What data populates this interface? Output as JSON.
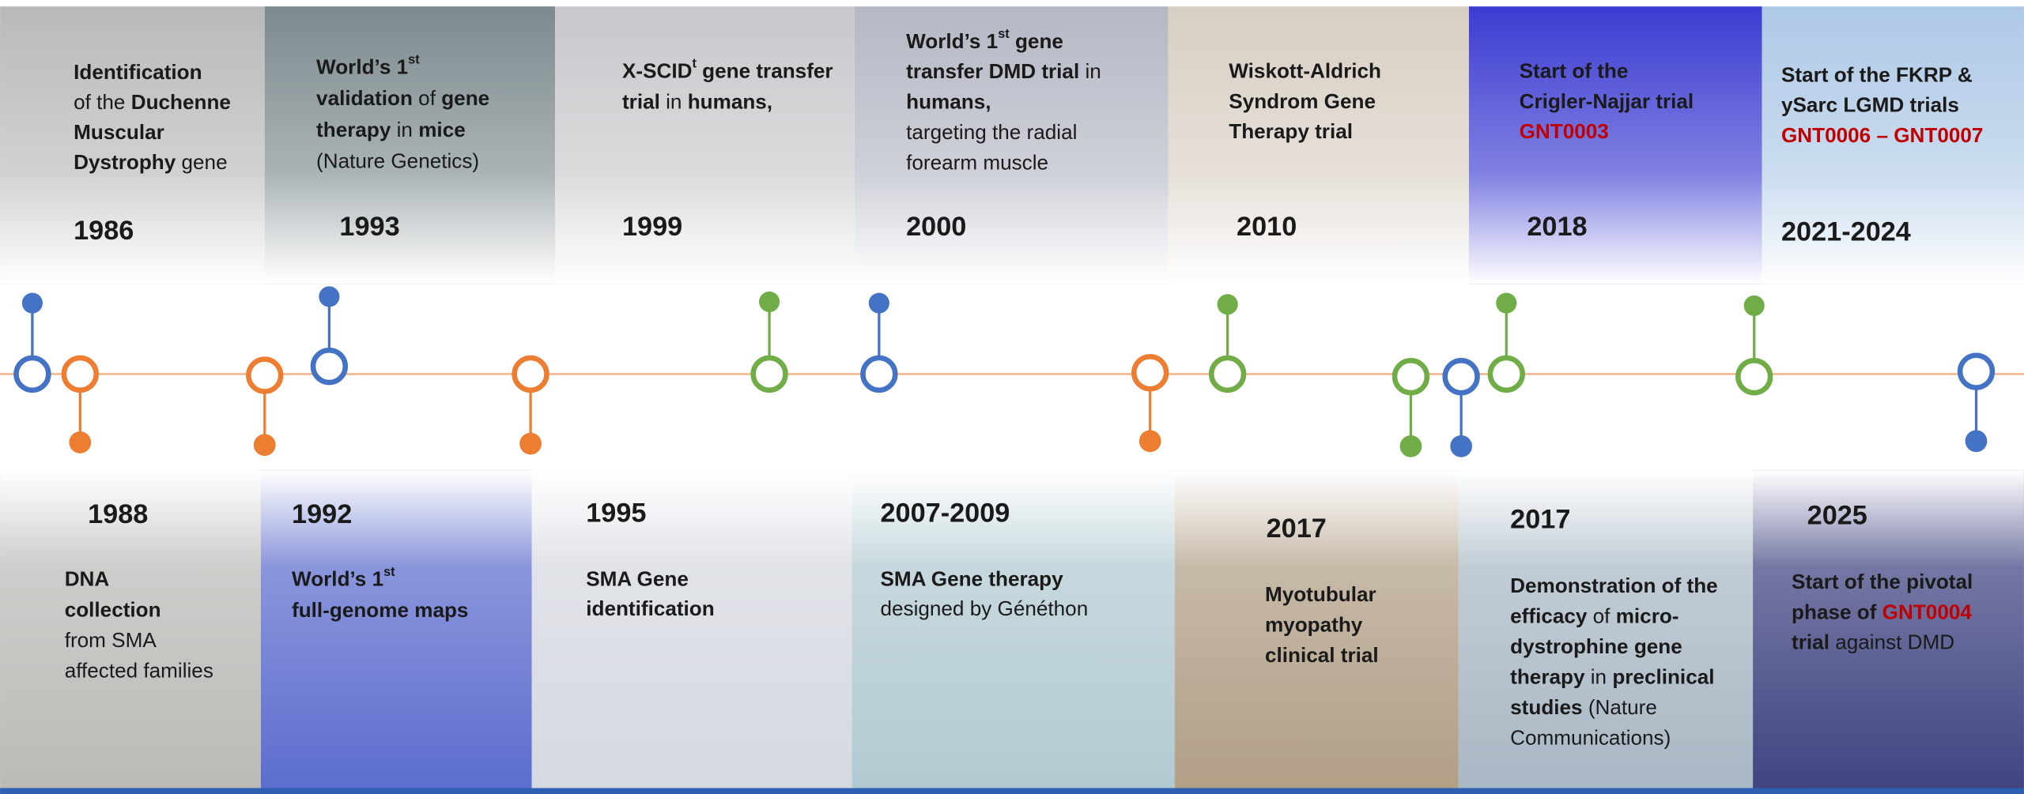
{
  "events": [
    {
      "year": "1986",
      "color": "#4472c4",
      "lines": [
        [
          {
            "text": "Identification",
            "bold": true
          }
        ],
        [
          {
            "text": "of the "
          },
          {
            "text": "Duchenne",
            "bold": true
          }
        ],
        [
          {
            "text": "Muscular",
            "bold": true
          }
        ],
        [
          {
            "text": "Dystrophy",
            "bold": true
          },
          {
            "text": " gene"
          }
        ]
      ]
    },
    {
      "year": "1993",
      "color": "#4472c4",
      "lines": [
        [
          {
            "text": "World’s 1",
            "bold": true
          },
          {
            "text": "st",
            "bold": true,
            "sup": true
          }
        ],
        [
          {
            "text": "validation",
            "bold": true
          },
          {
            "text": " of "
          },
          {
            "text": "gene",
            "bold": true
          }
        ],
        [
          {
            "text": "therapy",
            "bold": true
          },
          {
            "text": " in "
          },
          {
            "text": "mice",
            "bold": true
          }
        ],
        [
          {
            "text": "(Nature Genetics)"
          }
        ]
      ]
    },
    {
      "year": "1999",
      "color": "#70ad47",
      "lines": [
        [
          {
            "text": "X-SCID",
            "bold": true
          },
          {
            "text": "t",
            "bold": true,
            "sup": true
          },
          {
            "text": " gene transfer",
            "bold": true
          }
        ],
        [
          {
            "text": "trial",
            "bold": true
          },
          {
            "text": " in "
          },
          {
            "text": "humans,",
            "bold": true
          }
        ]
      ]
    },
    {
      "year": "2000",
      "color": "#4472c4",
      "lines": [
        [
          {
            "text": "World’s 1",
            "bold": true
          },
          {
            "text": "st",
            "bold": true,
            "sup": true
          },
          {
            "text": " gene",
            "bold": true
          }
        ],
        [
          {
            "text": "transfer DMD trial",
            "bold": true
          },
          {
            "text": " in"
          }
        ],
        [
          {
            "text": "humans,",
            "bold": true
          }
        ],
        [
          {
            "text": "targeting the radial"
          }
        ],
        [
          {
            "text": "forearm muscle"
          }
        ]
      ]
    },
    {
      "year": "2010",
      "color": "#70ad47",
      "lines": [
        [
          {
            "text": "Wiskott-Aldrich",
            "bold": true
          }
        ],
        [
          {
            "text": "Syndrom Gene",
            "bold": true
          }
        ],
        [
          {
            "text": "Therapy trial",
            "bold": true
          }
        ]
      ]
    },
    {
      "year": "2018",
      "color": "#70ad47",
      "lines": [
        [
          {
            "text": "Start of the",
            "bold": true
          }
        ],
        [
          {
            "text": "Crigler-Najjar trial",
            "bold": true
          }
        ],
        [
          {
            "text": "GNT0003",
            "bold": true,
            "color": "#c00000"
          }
        ]
      ]
    },
    {
      "year": "2021-2024",
      "color": "#70ad47",
      "lines": [
        [
          {
            "text": "Start of the FKRP &",
            "bold": true
          }
        ],
        [
          {
            "text": "ySarc LGMD trials",
            "bold": true
          }
        ],
        [
          {
            "text": "GNT0006 – GNT0007",
            "bold": true,
            "color": "#c00000"
          }
        ]
      ]
    },
    {
      "year": "1988",
      "color": "#ed7d31",
      "lines": [
        [
          {
            "text": "DNA",
            "bold": true
          }
        ],
        [
          {
            "text": "collection",
            "bold": true
          }
        ],
        [
          {
            "text": "from SMA"
          }
        ],
        [
          {
            "text": "affected families"
          }
        ]
      ]
    },
    {
      "year": "1992",
      "color": "#ed7d31",
      "lines": [
        [
          {
            "text": "World’s 1",
            "bold": true
          },
          {
            "text": "st",
            "bold": true,
            "sup": true
          }
        ],
        [
          {
            "text": "full-genome maps",
            "bold": true
          }
        ]
      ]
    },
    {
      "year": "1995",
      "color": "#ed7d31",
      "lines": [
        [
          {
            "text": "SMA Gene",
            "bold": true
          }
        ],
        [
          {
            "text": "identification",
            "bold": true
          }
        ]
      ]
    },
    {
      "year": "2007-2009",
      "color": "#ed7d31",
      "lines": [
        [
          {
            "text": "SMA Gene therapy",
            "bold": true
          }
        ],
        [
          {
            "text": "designed by Généthon"
          }
        ]
      ]
    },
    {
      "year": "2017",
      "color": "#70ad47",
      "lines": [
        [
          {
            "text": "Myotubular",
            "bold": true
          }
        ],
        [
          {
            "text": "myopathy",
            "bold": true
          }
        ],
        [
          {
            "text": "clinical trial",
            "bold": true
          }
        ]
      ]
    },
    {
      "year": "2017",
      "color": "#4472c4",
      "lines": [
        [
          {
            "text": "Demonstration of the",
            "bold": true
          }
        ],
        [
          {
            "text": "efficacy",
            "bold": true
          },
          {
            "text": " of "
          },
          {
            "text": "micro-",
            "bold": true
          }
        ],
        [
          {
            "text": "dystrophine gene",
            "bold": true
          }
        ],
        [
          {
            "text": "therapy",
            "bold": true
          },
          {
            "text": " in "
          },
          {
            "text": "preclinical",
            "bold": true
          }
        ],
        [
          {
            "text": "studies",
            "bold": true
          },
          {
            "text": " (Nature"
          }
        ],
        [
          {
            "text": "Communications)"
          }
        ]
      ]
    },
    {
      "year": "2025",
      "color": "#4472c4",
      "lines": [
        [
          {
            "text": "Start of the pivotal",
            "bold": true
          }
        ],
        [
          {
            "text": "phase of ",
            "bold": true
          },
          {
            "text": "GNT0004",
            "bold": true,
            "color": "#c00000"
          }
        ],
        [
          {
            "text": "trial",
            "bold": true
          },
          {
            "text": " against DMD"
          }
        ]
      ]
    }
  ]
}
